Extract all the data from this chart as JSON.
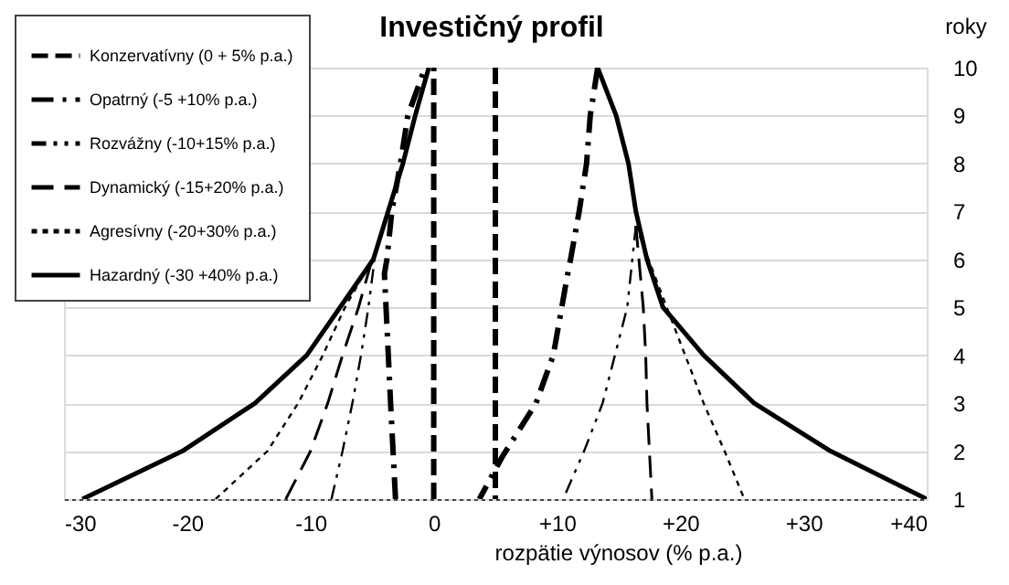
{
  "chart_data": {
    "type": "line",
    "title": "Investičný profil",
    "xlabel": "rozpätie výnosov  (% p.a.)",
    "ylabel": "roky",
    "xlim": [
      -30,
      40
    ],
    "ylim": [
      1,
      10
    ],
    "xticks": [
      {
        "value": -30,
        "label": "-30"
      },
      {
        "value": -20,
        "label": "-20"
      },
      {
        "value": -10,
        "label": "-10"
      },
      {
        "value": 0,
        "label": "0"
      },
      {
        "value": 10,
        "label": "+10"
      },
      {
        "value": 20,
        "label": "+20"
      },
      {
        "value": 30,
        "label": "+30"
      },
      {
        "value": 40,
        "label": "+40"
      }
    ],
    "yticks": [
      1,
      2,
      3,
      4,
      5,
      6,
      7,
      8,
      9,
      10
    ],
    "grid": "y",
    "legend": "top left",
    "marker": "none",
    "series": [
      {
        "name": "Konzervatívny (0 + 5% p.a.)",
        "color": "#000000",
        "line_style": "dashed",
        "x": [
          0,
          0,
          null,
          5,
          5
        ],
        "values": [
          1,
          10,
          null,
          10,
          1
        ]
      },
      {
        "name": "Opatrný (-5 +10% p.a.)",
        "color": "#000000",
        "line_style": "dashdot",
        "x": [
          -3.1,
          -3.5,
          -4.0,
          -3.8,
          -3.4,
          -2.7,
          -2.1,
          -0.7,
          null,
          13.3,
          12.7,
          12.4,
          11.8,
          11.1,
          10.8,
          9.7,
          8.3,
          5.6,
          3.7
        ],
        "values": [
          1,
          3,
          5.7,
          6,
          7,
          8,
          9,
          10,
          null,
          10,
          9,
          8,
          7,
          6,
          5.6,
          4,
          3,
          1.9,
          1
        ]
      },
      {
        "name": "Rozvážny (-10+15% p.a.)",
        "color": "#000000",
        "line_style": "dashdotdot",
        "x": [
          -8.3,
          -7.4,
          -6.6,
          -5.9,
          -5.3,
          -4.8,
          null,
          16.4,
          15.7,
          14.7,
          13.7,
          12.2,
          10.5
        ],
        "values": [
          1,
          2,
          3,
          4,
          5,
          6,
          null,
          6.7,
          5,
          4,
          3,
          2,
          1
        ]
      },
      {
        "name": "Dynamický (-15+20% p.a.)",
        "color": "#000000",
        "line_style": "longdash",
        "x": [
          -12,
          -10,
          -8.6,
          -7.4,
          -6.1,
          -5.0,
          null,
          16.4,
          17.0,
          17.2,
          17.3,
          17.5,
          17.7
        ],
        "values": [
          1,
          2,
          3,
          4,
          5,
          6,
          null,
          6.7,
          5,
          4,
          3,
          2,
          1
        ]
      },
      {
        "name": "Agresívny (-20+30% p.a.)",
        "color": "#000000",
        "line_style": "dotted",
        "x": [
          -17.7,
          -13.5,
          -11,
          -9,
          -7.2,
          -5.0,
          null,
          16.4,
          18.9,
          20.4,
          21.9,
          23.6,
          25.2
        ],
        "values": [
          1,
          2,
          3,
          4,
          5,
          6,
          null,
          6.7,
          5,
          4,
          3,
          2,
          1
        ]
      },
      {
        "name": "Hazardný (-30 +40% p.a.)",
        "color": "#000000",
        "line_style": "solid",
        "x": [
          -28.5,
          -20.4,
          -14.5,
          -10.3,
          -7.6,
          -4.9,
          -3.7,
          -2.5,
          -1.5,
          -0.4,
          null,
          13.3,
          14.8,
          15.8,
          16.4,
          17.3,
          18.6,
          21.9,
          26,
          32.2,
          40
        ],
        "values": [
          1,
          2,
          3,
          4,
          5,
          6,
          7,
          8,
          9,
          10,
          null,
          10,
          9,
          8,
          7,
          6,
          5,
          4,
          3,
          2,
          1
        ]
      }
    ]
  }
}
